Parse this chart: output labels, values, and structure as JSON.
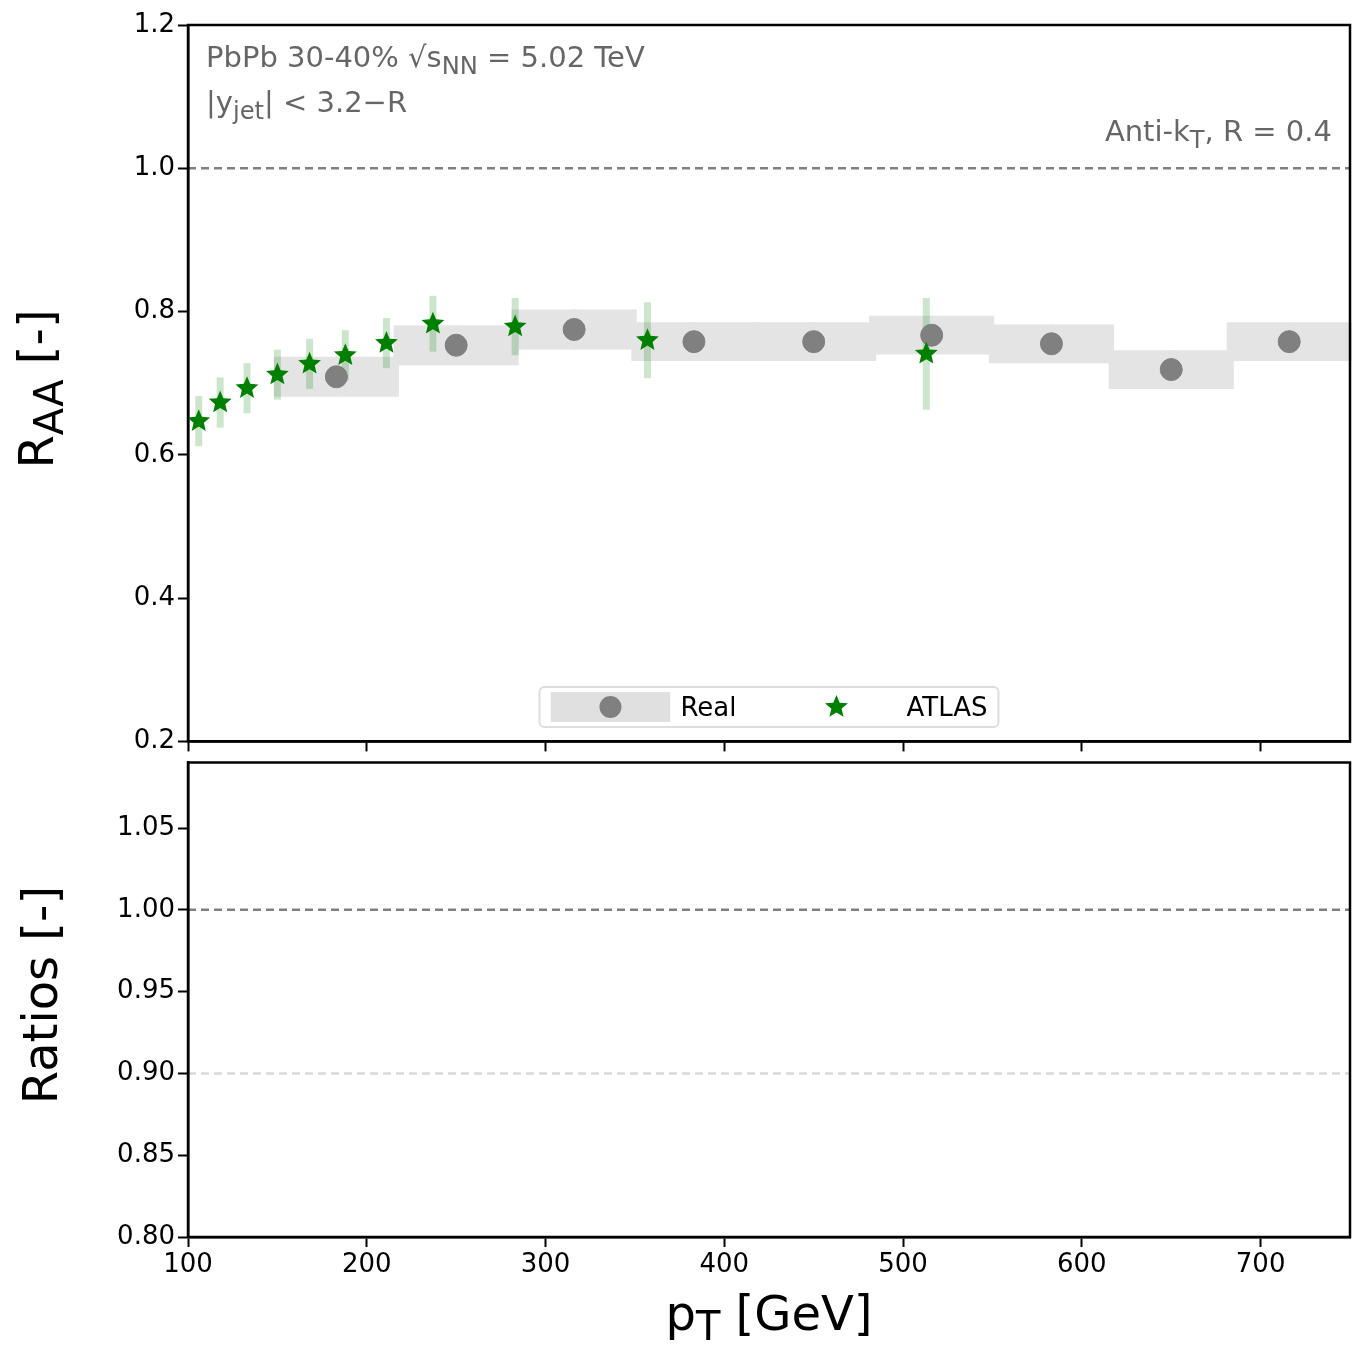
{
  "chart_data": [
    {
      "type": "scatter",
      "ylabel": "R$_{AA}$ [-]",
      "annotations": [
        "PbPb 30-40% √s$_{NN}$ = 5.02 TeV",
        "|y$_{jet}$| < 3.2−R",
        "Anti-k$_{T}$, R = 0.4"
      ],
      "xlim": [
        100,
        750
      ],
      "xticks": [
        100,
        200,
        300,
        400,
        500,
        600,
        700
      ],
      "ylim": [
        0.2,
        1.2
      ],
      "yticks": [
        0.2,
        0.4,
        0.6,
        0.8,
        {
          "value": 1,
          "label": "1.0"
        },
        1.2
      ],
      "tick_labels": "y",
      "grid": false,
      "legend": "bottom",
      "ref_lines": [
        {
          "axis": "y",
          "value": 1,
          "color": "#808080",
          "line_style": "dashed"
        }
      ],
      "series": [
        {
          "name": "Real",
          "color": "#808080",
          "marker": "circle",
          "x": [
            183,
            250,
            316,
            383,
            450,
            516,
            583,
            650,
            716
          ],
          "values": [
            0.709,
            0.753,
            0.775,
            0.758,
            0.758,
            0.767,
            0.755,
            0.719,
            0.758
          ],
          "errors": [
            0.028,
            0.028,
            0.028,
            0.027,
            0.027,
            0.027,
            0.027,
            0.027,
            0.027
          ],
          "xerrors": [
            35,
            35,
            35,
            35,
            35,
            35,
            35,
            35,
            35
          ]
        },
        {
          "name": "ATLAS",
          "color": "#008000",
          "marker": "star",
          "x": [
            106,
            118,
            133,
            150,
            168,
            188,
            211,
            237,
            283,
            357,
            513
          ],
          "values": [
            0.647,
            0.673,
            0.693,
            0.712,
            0.727,
            0.739,
            0.756,
            0.783,
            0.779,
            0.76,
            0.741
          ],
          "errors": [
            0.035,
            0.035,
            0.035,
            0.035,
            0.035,
            0.035,
            0.035,
            0.039,
            0.04,
            0.053,
            0.078
          ]
        }
      ]
    },
    {
      "type": "scatter",
      "ylabel": "Ratios [-]",
      "xlabel": "p$_{T}$ [GeV]",
      "xlim": [
        100,
        750
      ],
      "xticks": [
        100,
        200,
        300,
        400,
        500,
        600,
        700
      ],
      "ylim": [
        0.8,
        1.09
      ],
      "yticks": [
        {
          "value": 0.8,
          "label": "0.80"
        },
        0.85,
        {
          "value": 0.9,
          "label": "0.90"
        },
        0.95,
        {
          "value": 1,
          "label": "1.00"
        },
        1.05
      ],
      "grid": false,
      "ref_lines": [
        {
          "axis": "y",
          "value": 1,
          "color": "#808080",
          "line_style": "dashed"
        },
        {
          "axis": "y",
          "value": 0.9,
          "color": "#d9d9d9",
          "line_style": "dashed"
        }
      ]
    }
  ]
}
